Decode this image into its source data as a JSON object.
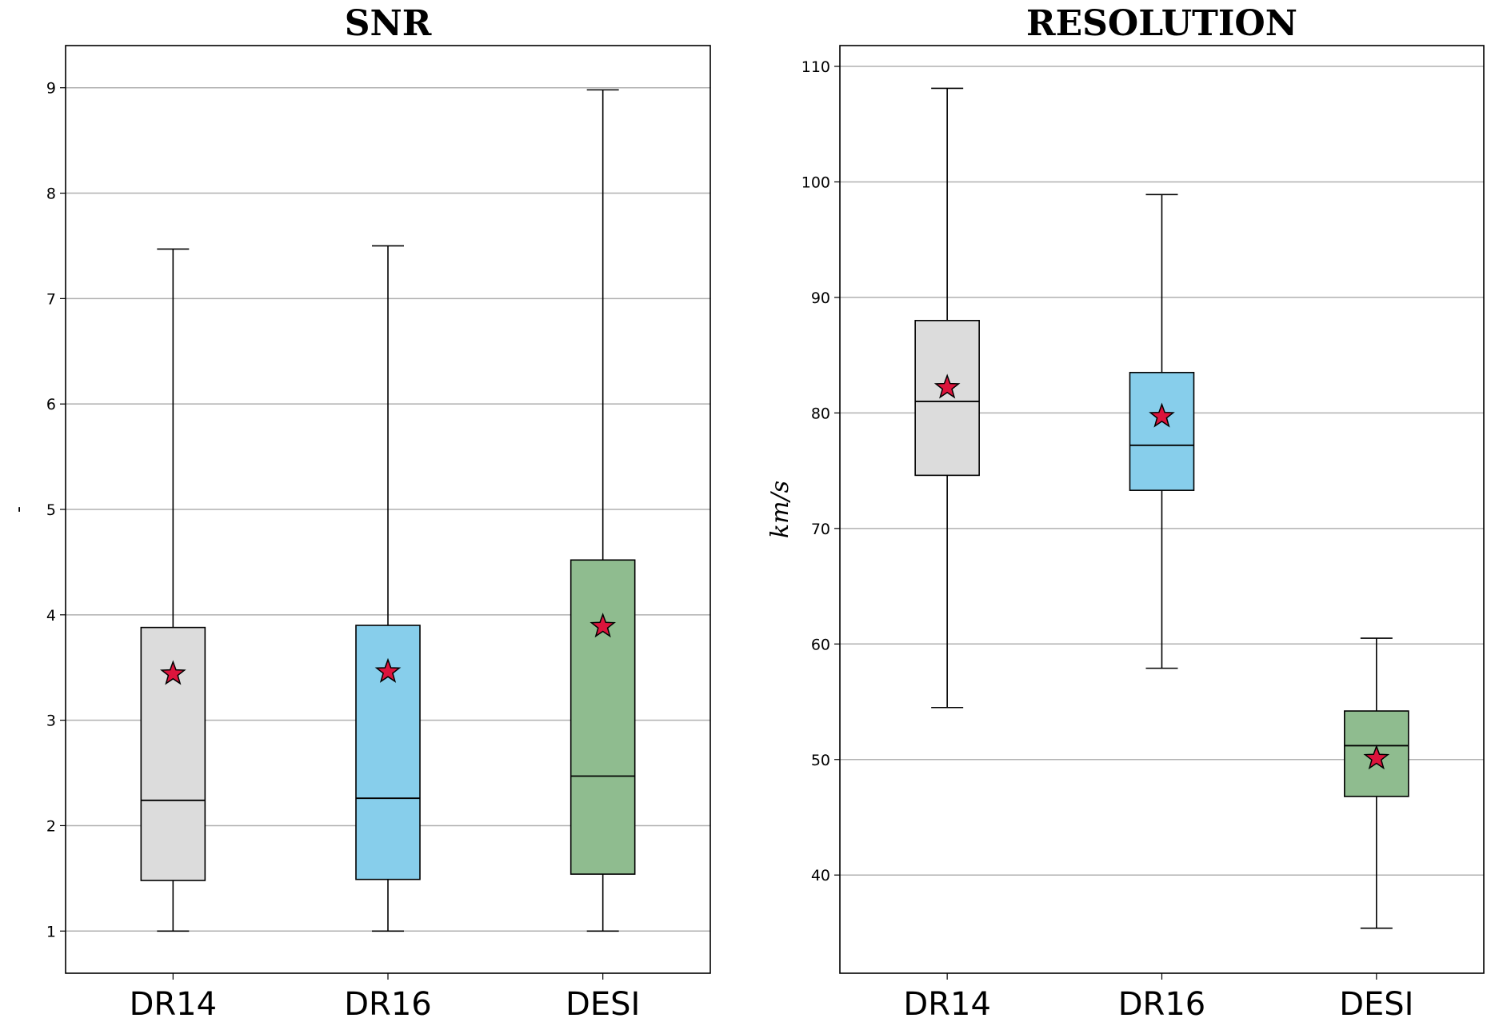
{
  "chart_data": [
    {
      "type": "box",
      "title": "SNR",
      "ylabel": "-",
      "ylim": [
        0.6,
        9.4
      ],
      "yticks": [
        1,
        2,
        3,
        4,
        5,
        6,
        7,
        8,
        9
      ],
      "grid": "y",
      "categories": [
        "DR14",
        "DR16",
        "DESI"
      ],
      "colors": [
        "#dcdcdc",
        "#87ceeb",
        "#8fbc8f"
      ],
      "mean_marker_color": "#dc143c",
      "boxes": [
        {
          "whisker_low": 1.0,
          "q1": 1.48,
          "median": 2.24,
          "q3": 3.88,
          "whisker_high": 7.47,
          "mean": 3.44
        },
        {
          "whisker_low": 1.0,
          "q1": 1.49,
          "median": 2.26,
          "q3": 3.9,
          "whisker_high": 7.5,
          "mean": 3.46
        },
        {
          "whisker_low": 1.0,
          "q1": 1.54,
          "median": 2.47,
          "q3": 4.52,
          "whisker_high": 8.98,
          "mean": 3.89
        }
      ]
    },
    {
      "type": "box",
      "title": "RESOLUTION",
      "ylabel": "km/s",
      "ylim": [
        31.5,
        111.8
      ],
      "yticks": [
        40,
        50,
        60,
        70,
        80,
        90,
        100,
        110
      ],
      "grid": "y",
      "categories": [
        "DR14",
        "DR16",
        "DESI"
      ],
      "colors": [
        "#dcdcdc",
        "#87ceeb",
        "#8fbc8f"
      ],
      "mean_marker_color": "#dc143c",
      "boxes": [
        {
          "whisker_low": 54.5,
          "q1": 74.6,
          "median": 81.0,
          "q3": 88.0,
          "whisker_high": 108.1,
          "mean": 82.2
        },
        {
          "whisker_low": 57.9,
          "q1": 73.3,
          "median": 77.2,
          "q3": 83.5,
          "whisker_high": 98.9,
          "mean": 79.7
        },
        {
          "whisker_low": 35.4,
          "q1": 46.8,
          "median": 51.2,
          "q3": 54.2,
          "whisker_high": 60.5,
          "mean": 50.1
        }
      ]
    }
  ]
}
